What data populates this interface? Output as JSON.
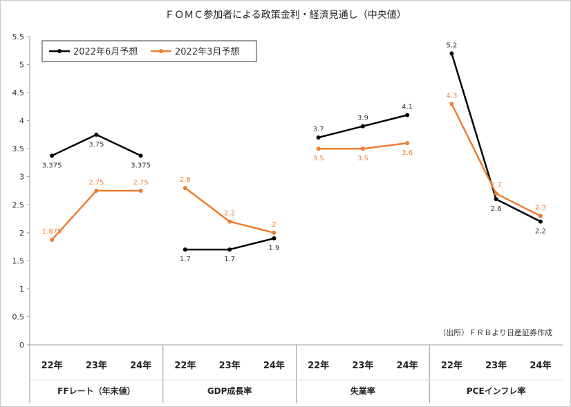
{
  "chart_data": {
    "type": "line",
    "title": "ＦＯＭＣ参加者による政策金利・経済見通し（中央値）",
    "source_note": "（出所）ＦＲＢより日産証券作成",
    "ylim": [
      0,
      5.5
    ],
    "yticks": [
      "0",
      "0.5",
      "1",
      "1.5",
      "2",
      "2.5",
      "3",
      "3.5",
      "4",
      "4.5",
      "5",
      "5.5"
    ],
    "grid": false,
    "legend_position": "top-left",
    "groups": [
      {
        "name": "FFレート（年末値）",
        "categories": [
          "22年",
          "23年",
          "24年"
        ]
      },
      {
        "name": "GDP成長率",
        "categories": [
          "22年",
          "23年",
          "24年"
        ]
      },
      {
        "name": "失業率",
        "categories": [
          "22年",
          "23年",
          "24年"
        ]
      },
      {
        "name": "PCEインフレ率",
        "categories": [
          "22年",
          "23年",
          "24年"
        ]
      }
    ],
    "series": [
      {
        "name": "2022年6月予想",
        "color": "#000000",
        "segments": [
          [
            3.375,
            3.75,
            3.375
          ],
          [
            1.7,
            1.7,
            1.9
          ],
          [
            3.7,
            3.9,
            4.1
          ],
          [
            5.2,
            2.6,
            2.2
          ]
        ],
        "labels": [
          [
            "3.375",
            "3.75",
            "3.375"
          ],
          [
            "1.7",
            "1.7",
            "1.9"
          ],
          [
            "3.7",
            "3.9",
            "4.1"
          ],
          [
            "5.2",
            "2.6",
            "2.2"
          ]
        ]
      },
      {
        "name": "2022年3月予想",
        "color": "#ed7d31",
        "segments": [
          [
            1.875,
            2.75,
            2.75
          ],
          [
            2.8,
            2.2,
            2.0
          ],
          [
            3.5,
            3.5,
            3.6
          ],
          [
            4.3,
            2.7,
            2.3
          ]
        ],
        "labels": [
          [
            "1.875",
            "2.75",
            "2.75"
          ],
          [
            "2.8",
            "2.2",
            "2"
          ],
          [
            "3.5",
            "3.5",
            "3.6"
          ],
          [
            "4.3",
            "2.7",
            "2.3"
          ]
        ]
      }
    ]
  }
}
